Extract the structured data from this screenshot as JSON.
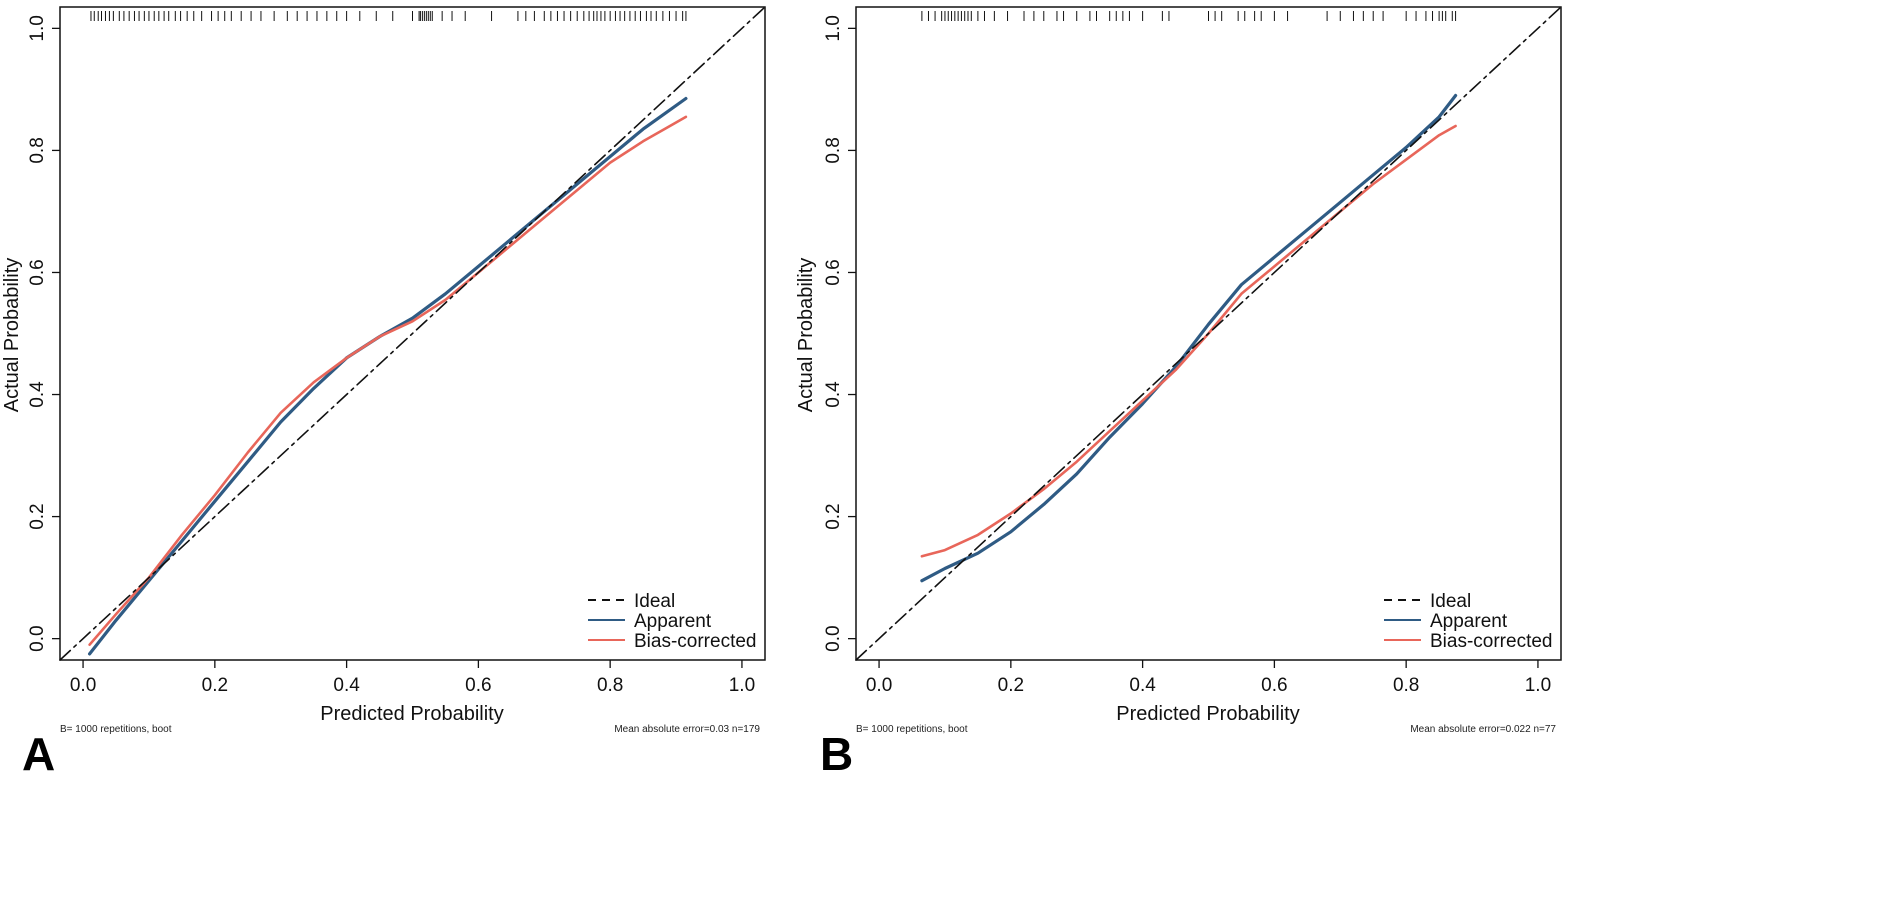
{
  "colors": {
    "ideal": "#111111",
    "apparent": "#2f5b84",
    "bias": "#e8665a",
    "axis": "#111111"
  },
  "chart_data": [
    {
      "type": "line",
      "panel_label": "A",
      "xlabel": "Predicted Probability",
      "ylabel": "Actual Probability",
      "xlim": [
        -0.035,
        1.035
      ],
      "ylim": [
        -0.035,
        1.035
      ],
      "x_ticks": [
        0.0,
        0.2,
        0.4,
        0.6,
        0.8,
        1.0
      ],
      "x_tick_labels": [
        "0.0",
        "0.2",
        "0.4",
        "0.6",
        "0.8",
        "1.0"
      ],
      "y_ticks": [
        0.0,
        0.2,
        0.4,
        0.6,
        0.8,
        1.0
      ],
      "y_tick_labels": [
        "0.0",
        "0.2",
        "0.4",
        "0.6",
        "0.8",
        "1.0"
      ],
      "legend": {
        "position": "bottom-right",
        "entries": [
          "Ideal",
          "Apparent",
          "Bias-corrected"
        ]
      },
      "footnote_left": "B= 1000 repetitions, boot",
      "footnote_right": "Mean absolute error=0.03 n=179",
      "series": [
        {
          "name": "Ideal",
          "style": "dashed",
          "x": [
            -0.035,
            1.035
          ],
          "y": [
            -0.035,
            1.035
          ]
        },
        {
          "name": "Apparent",
          "x": [
            0.01,
            0.05,
            0.1,
            0.15,
            0.2,
            0.25,
            0.3,
            0.35,
            0.4,
            0.45,
            0.5,
            0.55,
            0.6,
            0.65,
            0.7,
            0.75,
            0.8,
            0.85,
            0.915
          ],
          "y": [
            -0.025,
            0.03,
            0.095,
            0.16,
            0.225,
            0.29,
            0.355,
            0.41,
            0.46,
            0.495,
            0.525,
            0.565,
            0.61,
            0.655,
            0.7,
            0.745,
            0.79,
            0.835,
            0.885
          ]
        },
        {
          "name": "Bias-corrected",
          "x": [
            0.01,
            0.05,
            0.1,
            0.15,
            0.2,
            0.25,
            0.3,
            0.35,
            0.4,
            0.45,
            0.5,
            0.55,
            0.6,
            0.65,
            0.7,
            0.75,
            0.8,
            0.85,
            0.915
          ],
          "y": [
            -0.01,
            0.04,
            0.1,
            0.17,
            0.235,
            0.305,
            0.37,
            0.42,
            0.46,
            0.495,
            0.52,
            0.555,
            0.6,
            0.645,
            0.69,
            0.735,
            0.78,
            0.815,
            0.855
          ]
        }
      ],
      "rug": [
        0.012,
        0.017,
        0.023,
        0.028,
        0.034,
        0.04,
        0.046,
        0.055,
        0.062,
        0.07,
        0.078,
        0.085,
        0.093,
        0.1,
        0.108,
        0.115,
        0.123,
        0.13,
        0.14,
        0.148,
        0.158,
        0.168,
        0.18,
        0.195,
        0.205,
        0.215,
        0.225,
        0.24,
        0.255,
        0.27,
        0.29,
        0.31,
        0.325,
        0.34,
        0.355,
        0.37,
        0.385,
        0.4,
        0.42,
        0.445,
        0.47,
        0.5,
        0.51,
        0.512,
        0.515,
        0.518,
        0.521,
        0.524,
        0.527,
        0.53,
        0.545,
        0.56,
        0.58,
        0.62,
        0.66,
        0.672,
        0.685,
        0.7,
        0.71,
        0.72,
        0.73,
        0.74,
        0.75,
        0.76,
        0.768,
        0.775,
        0.78,
        0.786,
        0.792,
        0.8,
        0.808,
        0.815,
        0.822,
        0.83,
        0.838,
        0.846,
        0.855,
        0.862,
        0.87,
        0.88,
        0.89,
        0.9,
        0.91,
        0.915
      ]
    },
    {
      "type": "line",
      "panel_label": "B",
      "xlabel": "Predicted Probability",
      "ylabel": "Actual Probability",
      "xlim": [
        -0.035,
        1.035
      ],
      "ylim": [
        -0.035,
        1.035
      ],
      "x_ticks": [
        0.0,
        0.2,
        0.4,
        0.6,
        0.8,
        1.0
      ],
      "x_tick_labels": [
        "0.0",
        "0.2",
        "0.4",
        "0.6",
        "0.8",
        "1.0"
      ],
      "y_ticks": [
        0.0,
        0.2,
        0.4,
        0.6,
        0.8,
        1.0
      ],
      "y_tick_labels": [
        "0.0",
        "0.2",
        "0.4",
        "0.6",
        "0.8",
        "1.0"
      ],
      "legend": {
        "position": "bottom-right",
        "entries": [
          "Ideal",
          "Apparent",
          "Bias-corrected"
        ]
      },
      "footnote_left": "B= 1000 repetitions, boot",
      "footnote_right": "Mean absolute error=0.022 n=77",
      "series": [
        {
          "name": "Ideal",
          "style": "dashed",
          "x": [
            -0.035,
            1.035
          ],
          "y": [
            -0.035,
            1.035
          ]
        },
        {
          "name": "Apparent",
          "x": [
            0.065,
            0.1,
            0.15,
            0.2,
            0.25,
            0.3,
            0.35,
            0.4,
            0.45,
            0.5,
            0.55,
            0.6,
            0.65,
            0.7,
            0.75,
            0.8,
            0.85,
            0.875
          ],
          "y": [
            0.095,
            0.115,
            0.14,
            0.175,
            0.22,
            0.27,
            0.33,
            0.385,
            0.445,
            0.515,
            0.58,
            0.625,
            0.67,
            0.715,
            0.76,
            0.805,
            0.855,
            0.89
          ]
        },
        {
          "name": "Bias-corrected",
          "x": [
            0.065,
            0.1,
            0.15,
            0.2,
            0.25,
            0.3,
            0.35,
            0.4,
            0.45,
            0.5,
            0.55,
            0.6,
            0.65,
            0.7,
            0.75,
            0.8,
            0.85,
            0.875
          ],
          "y": [
            0.135,
            0.145,
            0.17,
            0.205,
            0.245,
            0.29,
            0.34,
            0.39,
            0.44,
            0.5,
            0.565,
            0.61,
            0.655,
            0.7,
            0.745,
            0.785,
            0.825,
            0.84
          ]
        }
      ],
      "rug": [
        0.065,
        0.075,
        0.085,
        0.095,
        0.1,
        0.105,
        0.11,
        0.115,
        0.12,
        0.125,
        0.13,
        0.135,
        0.14,
        0.15,
        0.16,
        0.175,
        0.195,
        0.22,
        0.235,
        0.25,
        0.27,
        0.28,
        0.3,
        0.32,
        0.33,
        0.35,
        0.36,
        0.37,
        0.38,
        0.4,
        0.43,
        0.44,
        0.5,
        0.51,
        0.52,
        0.545,
        0.555,
        0.57,
        0.58,
        0.6,
        0.62,
        0.68,
        0.7,
        0.72,
        0.735,
        0.75,
        0.765,
        0.8,
        0.815,
        0.83,
        0.84,
        0.85,
        0.855,
        0.86,
        0.87,
        0.875
      ]
    }
  ]
}
